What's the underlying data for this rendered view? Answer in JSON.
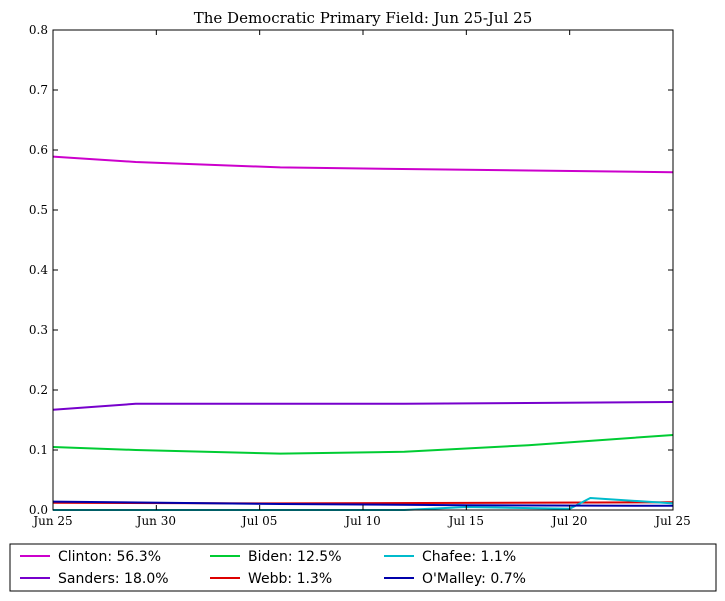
{
  "chart_data": {
    "type": "line",
    "title": "The Democratic Primary Field: Jun 25-Jul 25",
    "xlabel": "",
    "ylabel": "",
    "x_domain": [
      "2015-06-25",
      "2015-07-25"
    ],
    "xlim": [
      "2015-06-25",
      "2015-07-25"
    ],
    "ylim": [
      0,
      0.8
    ],
    "x_ticks": [
      {
        "date": "2015-06-25",
        "label": "Jun 25"
      },
      {
        "date": "2015-06-30",
        "label": "Jun 30"
      },
      {
        "date": "2015-07-05",
        "label": "Jul 05"
      },
      {
        "date": "2015-07-10",
        "label": "Jul 10"
      },
      {
        "date": "2015-07-15",
        "label": "Jul 15"
      },
      {
        "date": "2015-07-20",
        "label": "Jul 20"
      },
      {
        "date": "2015-07-25",
        "label": "Jul 25"
      }
    ],
    "y_ticks": [
      {
        "value": 0.0,
        "label": "0.0"
      },
      {
        "value": 0.1,
        "label": "0.1"
      },
      {
        "value": 0.2,
        "label": "0.2"
      },
      {
        "value": 0.3,
        "label": "0.3"
      },
      {
        "value": 0.4,
        "label": "0.4"
      },
      {
        "value": 0.5,
        "label": "0.5"
      },
      {
        "value": 0.6,
        "label": "0.6"
      },
      {
        "value": 0.7,
        "label": "0.7"
      },
      {
        "value": 0.8,
        "label": "0.8"
      }
    ],
    "grid": false,
    "legend_position": "bottom",
    "series": [
      {
        "name": "Clinton: 56.3%",
        "color": "#cc00cc",
        "points": [
          {
            "x": "2015-06-25",
            "y": 0.589
          },
          {
            "x": "2015-06-29",
            "y": 0.58
          },
          {
            "x": "2015-07-06",
            "y": 0.571
          },
          {
            "x": "2015-07-15",
            "y": 0.567
          },
          {
            "x": "2015-07-25",
            "y": 0.563
          }
        ]
      },
      {
        "name": "Sanders: 18.0%",
        "color": "#7700cc",
        "points": [
          {
            "x": "2015-06-25",
            "y": 0.167
          },
          {
            "x": "2015-06-29",
            "y": 0.177
          },
          {
            "x": "2015-07-12",
            "y": 0.177
          },
          {
            "x": "2015-07-25",
            "y": 0.18
          }
        ]
      },
      {
        "name": "Biden: 12.5%",
        "color": "#00cc33",
        "points": [
          {
            "x": "2015-06-25",
            "y": 0.105
          },
          {
            "x": "2015-06-29",
            "y": 0.1
          },
          {
            "x": "2015-07-06",
            "y": 0.094
          },
          {
            "x": "2015-07-12",
            "y": 0.097
          },
          {
            "x": "2015-07-18",
            "y": 0.108
          },
          {
            "x": "2015-07-25",
            "y": 0.125
          }
        ]
      },
      {
        "name": "Webb: 1.3%",
        "color": "#dd0000",
        "points": [
          {
            "x": "2015-06-25",
            "y": 0.012
          },
          {
            "x": "2015-07-06",
            "y": 0.011
          },
          {
            "x": "2015-07-25",
            "y": 0.013
          }
        ]
      },
      {
        "name": "Chafee: 1.1%",
        "color": "#00bbcc",
        "points": [
          {
            "x": "2015-06-25",
            "y": 0.0
          },
          {
            "x": "2015-07-12",
            "y": 0.0
          },
          {
            "x": "2015-07-15",
            "y": 0.005
          },
          {
            "x": "2015-07-20",
            "y": 0.002
          },
          {
            "x": "2015-07-21",
            "y": 0.02
          },
          {
            "x": "2015-07-25",
            "y": 0.011
          }
        ]
      },
      {
        "name": "O'Malley: 0.7%",
        "color": "#0000aa",
        "points": [
          {
            "x": "2015-06-25",
            "y": 0.014
          },
          {
            "x": "2015-07-06",
            "y": 0.01
          },
          {
            "x": "2015-07-15",
            "y": 0.008
          },
          {
            "x": "2015-07-25",
            "y": 0.007
          }
        ]
      }
    ],
    "legend_order": [
      "Clinton: 56.3%",
      "Sanders: 18.0%",
      "Biden: 12.5%",
      "Webb: 1.3%",
      "Chafee: 1.1%",
      "O'Malley: 0.7%"
    ]
  }
}
